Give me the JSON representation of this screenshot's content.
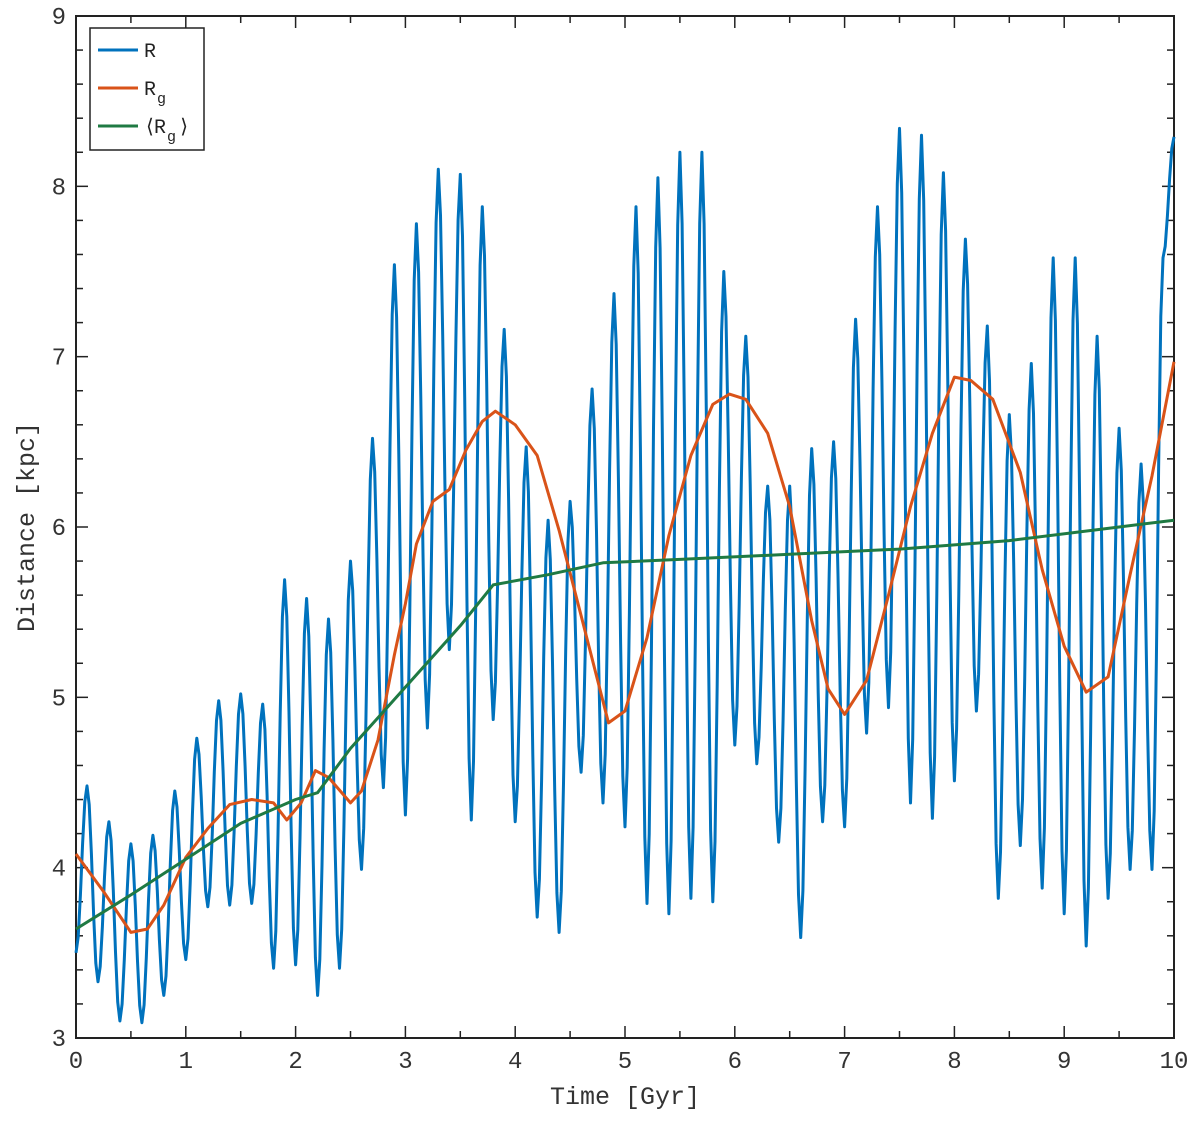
{
  "chart_data": {
    "type": "line",
    "title": "",
    "xlabel": "Time [Gyr]",
    "ylabel": "Distance [kpc]",
    "xlim": [
      0,
      10
    ],
    "ylim": [
      3,
      9
    ],
    "xticks": [
      "0",
      "1",
      "2",
      "3",
      "4",
      "5",
      "6",
      "7",
      "8",
      "9",
      "10"
    ],
    "yticks": [
      "3",
      "4",
      "5",
      "6",
      "7",
      "8",
      "9"
    ],
    "grid": false,
    "legend_position": "top-left",
    "series": [
      {
        "name": "R",
        "legend_main": "R",
        "legend_sub": "",
        "legend_brackets": false,
        "color": "#0072BD",
        "x": [
          0,
          0.1,
          0.2,
          0.3,
          0.4,
          0.5,
          0.6,
          0.7,
          0.8,
          0.9,
          1.0,
          1.1,
          1.2,
          1.3,
          1.4,
          1.5,
          1.6,
          1.7,
          1.8,
          1.9,
          2.0,
          2.1,
          2.2,
          2.3,
          2.4,
          2.5,
          2.6,
          2.7,
          2.8,
          2.9,
          3.0,
          3.1,
          3.2,
          3.3,
          3.4,
          3.5,
          3.6,
          3.7,
          3.8,
          3.9,
          4.0,
          4.1,
          4.2,
          4.3,
          4.4,
          4.5,
          4.6,
          4.7,
          4.8,
          4.9,
          5.0,
          5.1,
          5.2,
          5.3,
          5.4,
          5.5,
          5.6,
          5.7,
          5.8,
          5.9,
          6.0,
          6.1,
          6.2,
          6.3,
          6.4,
          6.5,
          6.6,
          6.7,
          6.8,
          6.9,
          7.0,
          7.1,
          7.2,
          7.3,
          7.4,
          7.5,
          7.6,
          7.7,
          7.8,
          7.9,
          8.0,
          8.1,
          8.2,
          8.3,
          8.4,
          8.5,
          8.6,
          8.7,
          8.8,
          8.9,
          9.0,
          9.1,
          9.2,
          9.3,
          9.4,
          9.5,
          9.6,
          9.7,
          9.8,
          9.9,
          10.0
        ],
        "values": [
          3.5,
          4.48,
          3.33,
          4.27,
          3.1,
          4.14,
          3.09,
          4.19,
          3.25,
          4.45,
          3.46,
          4.76,
          3.77,
          4.98,
          3.78,
          5.02,
          3.79,
          4.96,
          3.41,
          5.69,
          3.43,
          5.58,
          3.25,
          5.46,
          3.41,
          5.8,
          3.99,
          6.52,
          4.47,
          7.54,
          4.31,
          7.78,
          4.82,
          8.1,
          5.28,
          8.07,
          4.28,
          7.88,
          4.87,
          7.16,
          4.27,
          6.47,
          3.71,
          6.04,
          3.62,
          6.15,
          4.56,
          6.81,
          4.38,
          7.37,
          4.24,
          7.88,
          3.79,
          8.05,
          3.73,
          8.2,
          3.82,
          8.2,
          3.8,
          7.5,
          4.72,
          7.12,
          4.61,
          6.24,
          4.15,
          6.24,
          3.59,
          6.46,
          4.27,
          6.5,
          4.24,
          7.22,
          4.79,
          7.88,
          4.94,
          8.34,
          4.38,
          8.3,
          4.29,
          8.08,
          4.51,
          7.69,
          4.92,
          7.18,
          3.82,
          6.66,
          4.13,
          6.96,
          3.88,
          7.58,
          3.73,
          7.58,
          3.54,
          7.12,
          3.82,
          6.58,
          3.99,
          6.37,
          3.99,
          7.58,
          8.29
        ],
        "note_values_are_extremes": true
      },
      {
        "name": "Rg",
        "legend_main": "R",
        "legend_sub": "g",
        "legend_brackets": false,
        "color": "#D95319",
        "x": [
          0,
          0.25,
          0.5,
          0.65,
          0.8,
          1.0,
          1.2,
          1.4,
          1.6,
          1.8,
          1.92,
          2.05,
          2.18,
          2.3,
          2.5,
          2.6,
          2.75,
          2.9,
          3.0,
          3.1,
          3.25,
          3.4,
          3.55,
          3.7,
          3.82,
          4.0,
          4.2,
          4.4,
          4.6,
          4.85,
          5.0,
          5.2,
          5.4,
          5.6,
          5.8,
          5.95,
          6.1,
          6.3,
          6.5,
          6.7,
          6.85,
          7.0,
          7.2,
          7.4,
          7.6,
          7.8,
          8.0,
          8.15,
          8.35,
          8.6,
          8.8,
          9.0,
          9.2,
          9.4,
          9.6,
          9.8,
          10.0
        ],
        "values": [
          4.08,
          3.86,
          3.62,
          3.64,
          3.78,
          4.06,
          4.23,
          4.37,
          4.4,
          4.38,
          4.28,
          4.38,
          4.57,
          4.53,
          4.38,
          4.45,
          4.75,
          5.25,
          5.55,
          5.9,
          6.15,
          6.22,
          6.45,
          6.62,
          6.68,
          6.6,
          6.42,
          5.98,
          5.48,
          4.85,
          4.92,
          5.35,
          5.95,
          6.42,
          6.72,
          6.78,
          6.75,
          6.55,
          6.12,
          5.45,
          5.05,
          4.9,
          5.1,
          5.6,
          6.12,
          6.55,
          6.88,
          6.86,
          6.75,
          6.32,
          5.75,
          5.3,
          5.03,
          5.12,
          5.72,
          6.3,
          6.97
        ]
      },
      {
        "name": "⟨Rg⟩",
        "legend_main": "R",
        "legend_sub": "g",
        "legend_brackets": true,
        "color": "#1F7A43",
        "x": [
          0,
          0.5,
          1.0,
          1.5,
          2.0,
          2.2,
          2.5,
          3.0,
          3.5,
          3.8,
          4.3,
          4.8,
          5.5,
          6.5,
          7.5,
          8.5,
          9.5,
          10.0
        ],
        "values": [
          3.64,
          3.84,
          4.05,
          4.26,
          4.4,
          4.44,
          4.7,
          5.06,
          5.42,
          5.66,
          5.72,
          5.79,
          5.81,
          5.84,
          5.87,
          5.92,
          6.0,
          6.04
        ]
      }
    ]
  }
}
